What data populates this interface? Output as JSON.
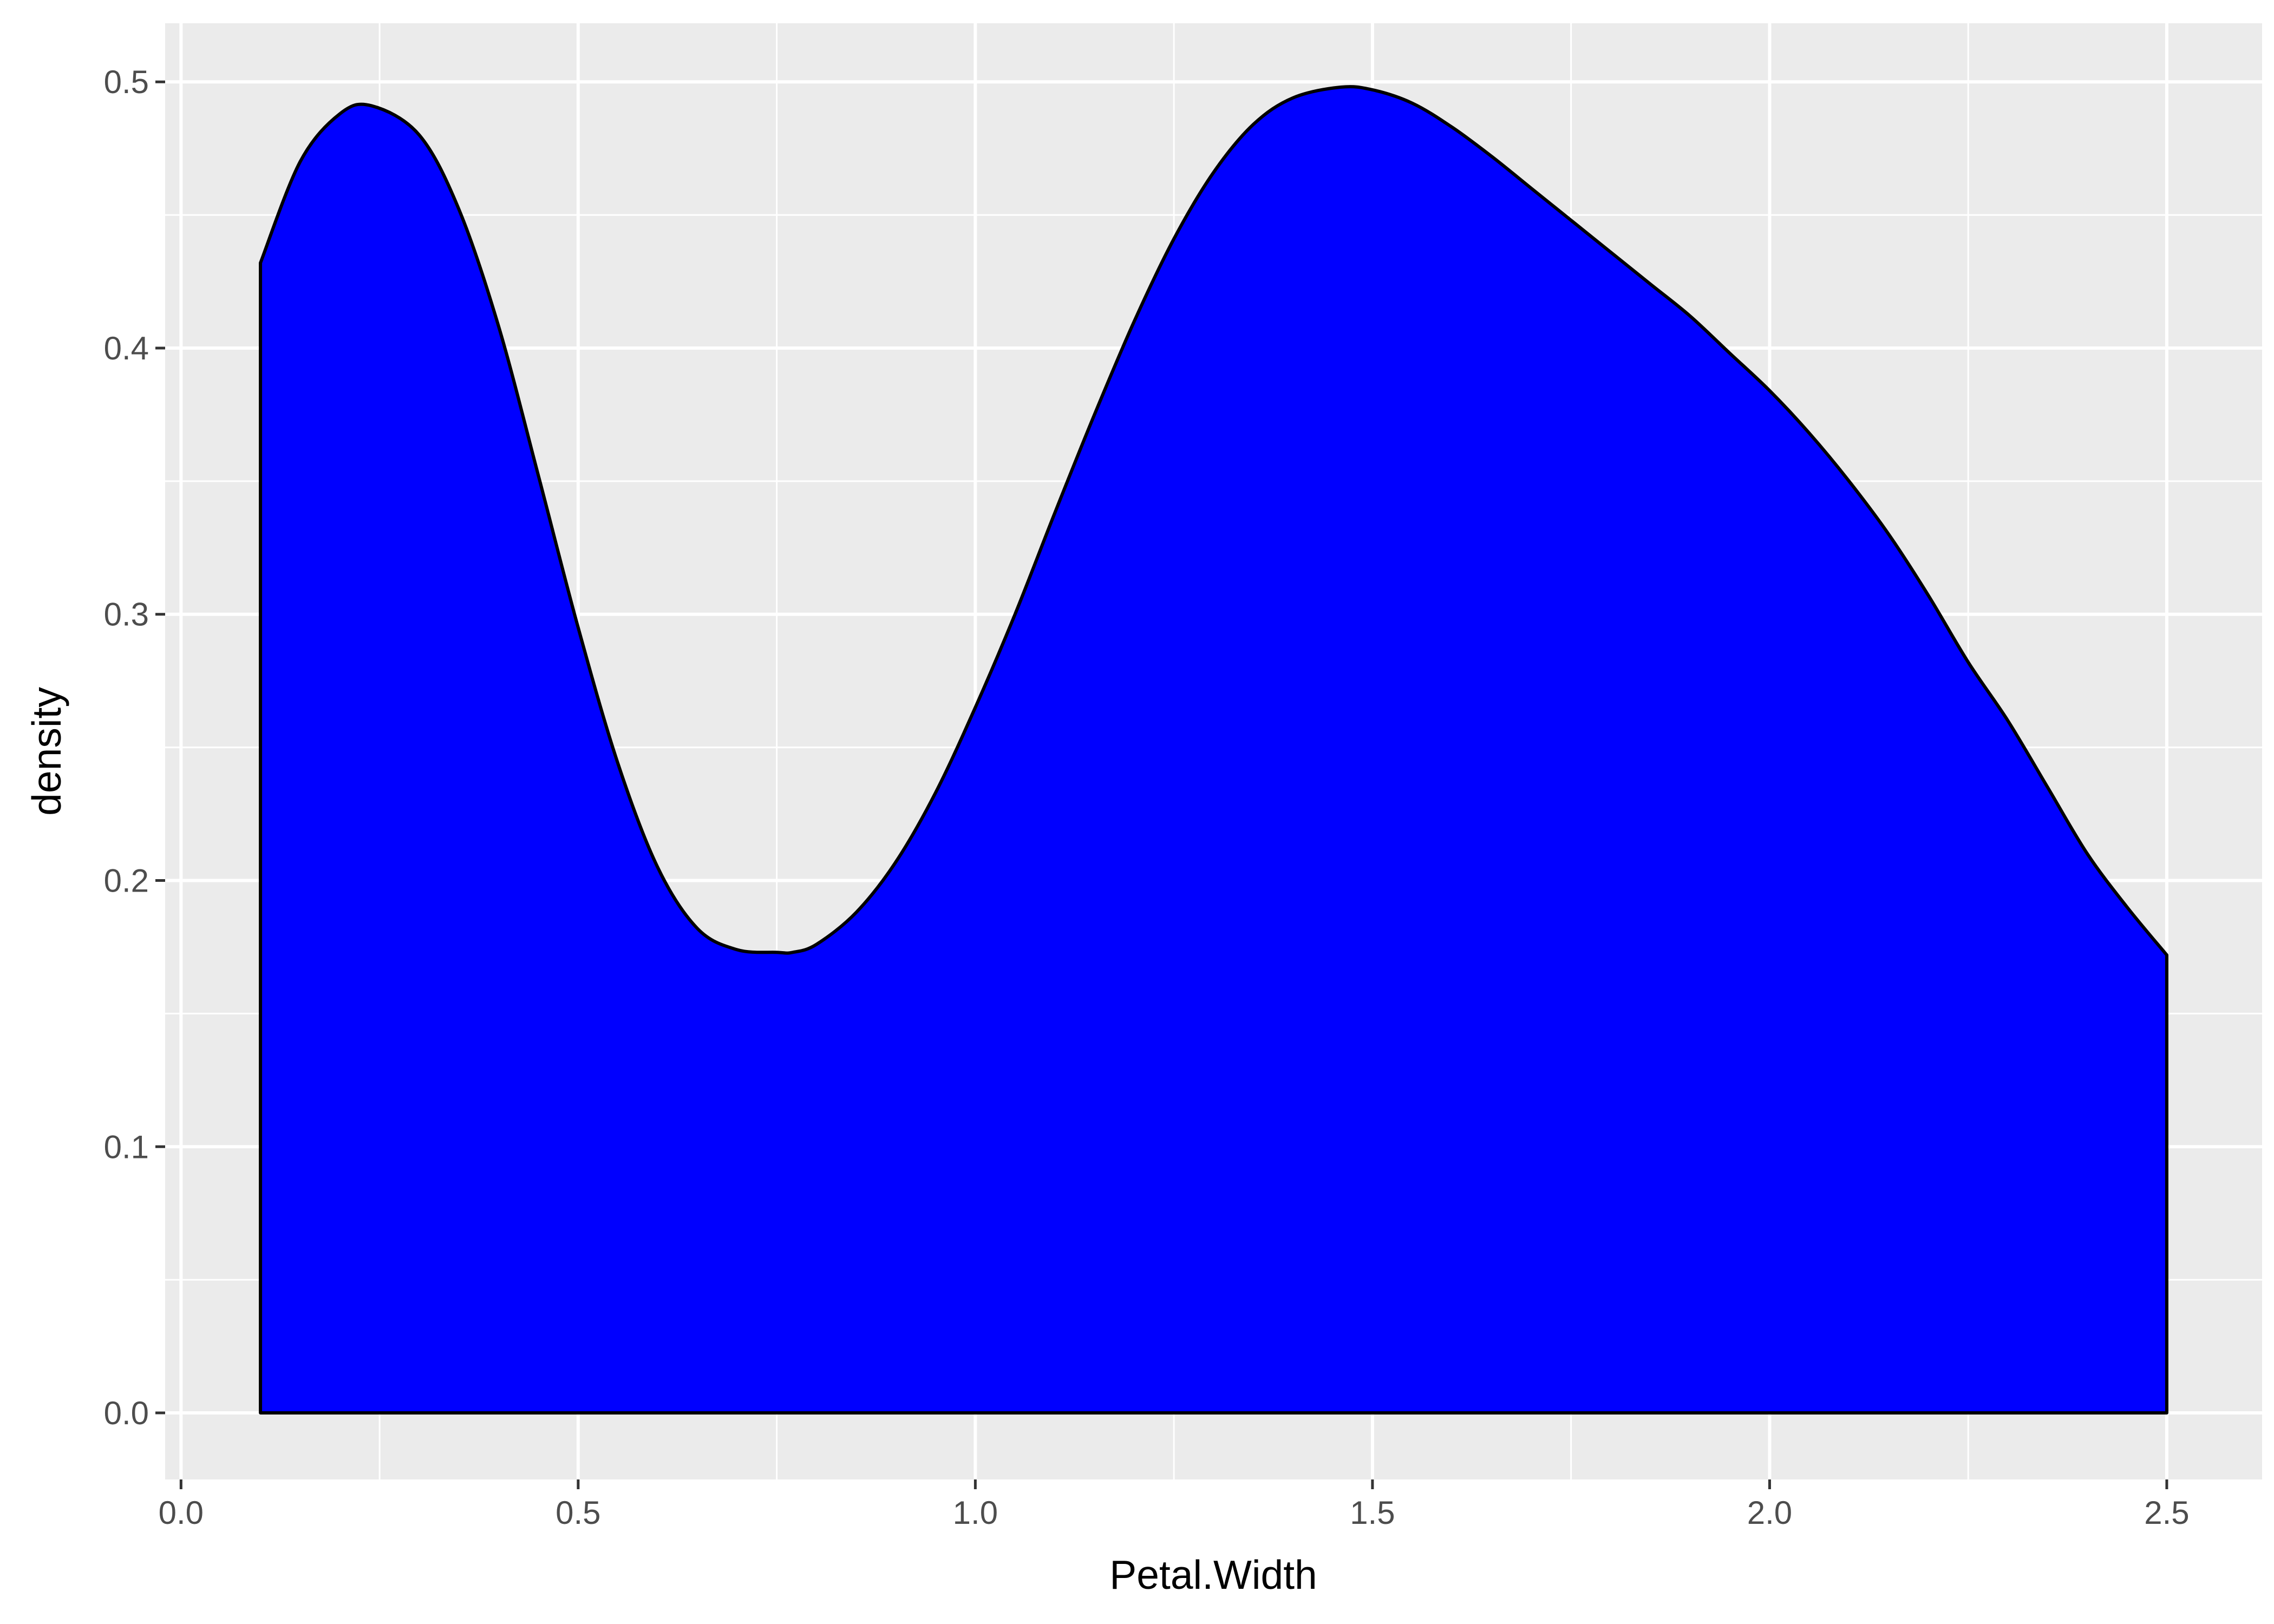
{
  "chart_data": {
    "type": "area",
    "xlabel": "Petal.Width",
    "ylabel": "density",
    "xlim": [
      -0.02,
      2.62
    ],
    "ylim": [
      -0.025,
      0.522
    ],
    "x_ticks": [
      {
        "value": 0.0,
        "label": "0.0"
      },
      {
        "value": 0.5,
        "label": "0.5"
      },
      {
        "value": 1.0,
        "label": "1.0"
      },
      {
        "value": 1.5,
        "label": "1.5"
      },
      {
        "value": 2.0,
        "label": "2.0"
      },
      {
        "value": 2.5,
        "label": "2.5"
      }
    ],
    "y_ticks": [
      {
        "value": 0.0,
        "label": "0.0"
      },
      {
        "value": 0.1,
        "label": "0.1"
      },
      {
        "value": 0.2,
        "label": "0.2"
      },
      {
        "value": 0.3,
        "label": "0.3"
      },
      {
        "value": 0.4,
        "label": "0.4"
      },
      {
        "value": 0.5,
        "label": "0.5"
      }
    ],
    "grid": true,
    "series": [
      {
        "fill": "#0000ff",
        "stroke": "#000000",
        "x": [
          0.1,
          0.15,
          0.2,
          0.24,
          0.3,
          0.35,
          0.4,
          0.45,
          0.5,
          0.55,
          0.6,
          0.65,
          0.7,
          0.75,
          0.77,
          0.8,
          0.85,
          0.9,
          0.95,
          1.0,
          1.05,
          1.1,
          1.15,
          1.2,
          1.25,
          1.3,
          1.35,
          1.4,
          1.46,
          1.5,
          1.55,
          1.6,
          1.65,
          1.7,
          1.75,
          1.8,
          1.85,
          1.9,
          1.95,
          2.0,
          2.05,
          2.1,
          2.15,
          2.2,
          2.25,
          2.3,
          2.35,
          2.4,
          2.45,
          2.5
        ],
        "y": [
          0.432,
          0.47,
          0.488,
          0.491,
          0.48,
          0.452,
          0.408,
          0.352,
          0.295,
          0.244,
          0.205,
          0.182,
          0.174,
          0.173,
          0.173,
          0.176,
          0.188,
          0.207,
          0.233,
          0.265,
          0.3,
          0.338,
          0.375,
          0.41,
          0.441,
          0.466,
          0.484,
          0.494,
          0.498,
          0.497,
          0.492,
          0.483,
          0.472,
          0.46,
          0.448,
          0.436,
          0.424,
          0.412,
          0.398,
          0.384,
          0.368,
          0.35,
          0.33,
          0.307,
          0.282,
          0.26,
          0.235,
          0.21,
          0.19,
          0.172
        ]
      }
    ]
  }
}
